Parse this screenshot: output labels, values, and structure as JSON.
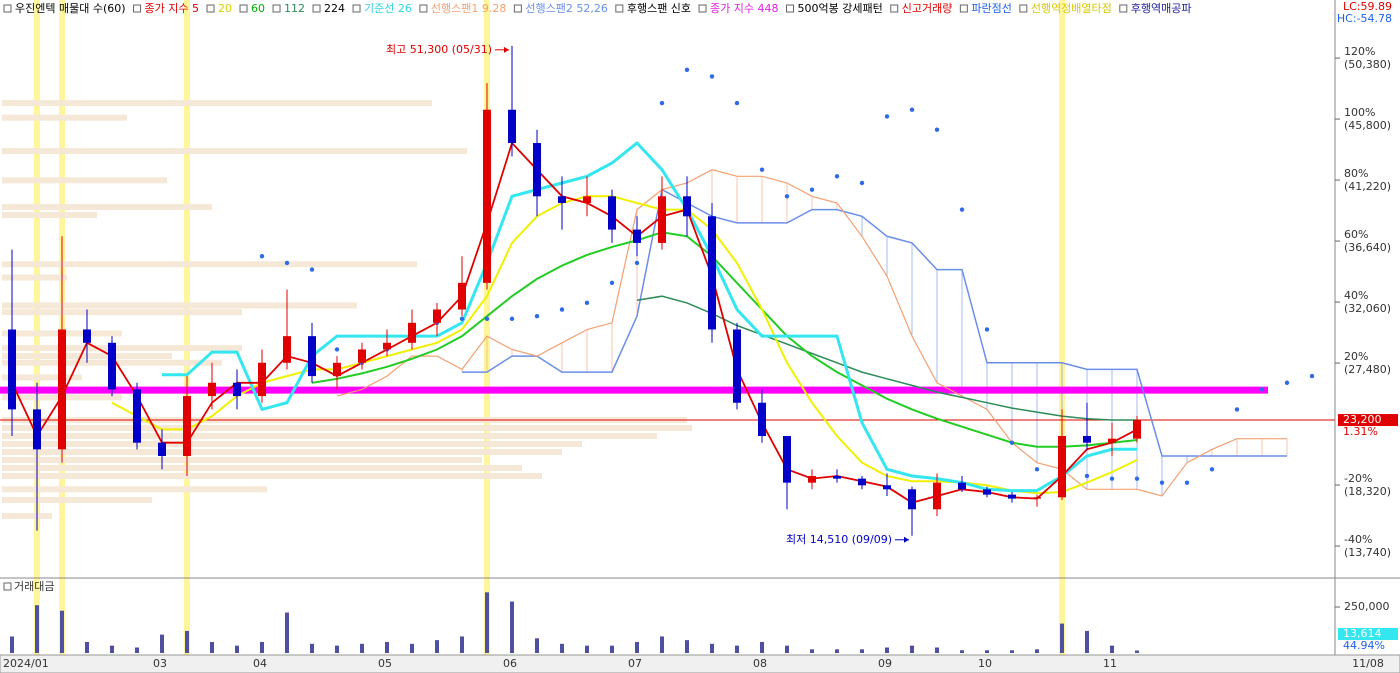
{
  "chart_data": {
    "type": "candlestick",
    "legend": [
      {
        "text": "우진엔텍 매물대 수(60)",
        "color": "#000000"
      },
      {
        "text": "종가 지수 5",
        "color": "#e00000"
      },
      {
        "text": "20",
        "color": "#d8d000"
      },
      {
        "text": "60",
        "color": "#00b000"
      },
      {
        "text": "112",
        "color": "#2e8b57"
      },
      {
        "text": "224",
        "color": "#000000"
      },
      {
        "text": "기준선 26",
        "color": "#33d6e0"
      },
      {
        "text": "선행스팬1 9.28",
        "color": "#f4a070"
      },
      {
        "text": "선행스팬2 52,26",
        "color": "#6a8ee8"
      },
      {
        "text": "후행스팬 신호",
        "color": "#000000"
      },
      {
        "text": "종가 지수 448",
        "color": "#e020e0"
      },
      {
        "text": "500억봉 강세패턴",
        "color": "#000000"
      },
      {
        "text": "신고거래량",
        "color": "#e00000"
      },
      {
        "text": "파란점선",
        "color": "#2060f0"
      },
      {
        "text": "선행역정배열타점",
        "color": "#d8c800"
      },
      {
        "text": "후행역매공파",
        "color": "#2020a0"
      }
    ],
    "categories": [
      "2024/01",
      null,
      null,
      null,
      null,
      null,
      "03",
      null,
      null,
      null,
      "04",
      null,
      null,
      null,
      null,
      "05",
      null,
      null,
      null,
      null,
      "06",
      null,
      null,
      null,
      null,
      "07",
      null,
      null,
      null,
      null,
      "08",
      null,
      null,
      null,
      null,
      "09",
      null,
      null,
      null,
      "10",
      null,
      null,
      null,
      null,
      "11",
      null,
      null,
      null,
      null,
      null,
      null,
      null,
      null
    ],
    "open": [
      30000,
      24000,
      21000,
      30000,
      29000,
      25500,
      21500,
      20500,
      25000,
      26000,
      25000,
      27500,
      29500,
      26500,
      27500,
      28500,
      29000,
      30500,
      31500,
      33500,
      46500,
      44000,
      40000,
      39500,
      40000,
      37500,
      36500,
      40000,
      38500,
      30000,
      24500,
      22000,
      18500,
      19000,
      18800,
      18300,
      18000,
      16500,
      18500,
      18000,
      17600,
      17300,
      17400,
      22000,
      21500,
      21800,
      null,
      null,
      null,
      null,
      null,
      null,
      null
    ],
    "high": [
      36000,
      26000,
      37000,
      31500,
      29500,
      26000,
      22500,
      26500,
      27500,
      27000,
      28500,
      33000,
      30500,
      28000,
      29000,
      30000,
      31500,
      32000,
      35500,
      48500,
      51300,
      45000,
      41500,
      41500,
      40500,
      38500,
      41500,
      41500,
      39500,
      30500,
      25500,
      22000,
      19500,
      19500,
      19000,
      19200,
      18200,
      19200,
      19000,
      18200,
      17800,
      17600,
      24000,
      24500,
      23000,
      23500,
      null,
      null,
      null,
      null,
      null,
      null,
      null
    ],
    "low": [
      22000,
      14900,
      20000,
      27500,
      25000,
      21000,
      19500,
      19000,
      24000,
      24000,
      24500,
      27000,
      26000,
      25500,
      27000,
      28000,
      28500,
      29500,
      31000,
      33000,
      43000,
      38500,
      37500,
      38500,
      36500,
      35500,
      36000,
      37000,
      29000,
      24000,
      21500,
      16500,
      18000,
      18500,
      18000,
      17500,
      14510,
      16000,
      17800,
      17400,
      17000,
      16700,
      17200,
      21000,
      20500,
      21500,
      null,
      null,
      null,
      null,
      null,
      null,
      null
    ],
    "close": [
      24000,
      21000,
      30000,
      29000,
      25500,
      21500,
      20500,
      25000,
      26000,
      25000,
      27500,
      29500,
      26500,
      27500,
      28500,
      29000,
      30500,
      31500,
      33500,
      46500,
      44000,
      40000,
      39500,
      40000,
      37500,
      36500,
      40000,
      38500,
      30000,
      24500,
      22000,
      18500,
      19000,
      18800,
      18300,
      18000,
      16500,
      18500,
      18000,
      17600,
      17300,
      17400,
      22000,
      21500,
      21800,
      23200,
      null,
      null,
      null,
      null,
      null,
      null,
      null
    ],
    "up_color": "#e00000",
    "down_color": "#0000c8",
    "series": [
      {
        "color": "#6a8ee8",
        "width": 1.5,
        "values": [
          null,
          null,
          null,
          null,
          null,
          null,
          null,
          null,
          null,
          null,
          null,
          null,
          null,
          null,
          null,
          null,
          null,
          null,
          26800,
          26800,
          28000,
          28000,
          26800,
          26800,
          26800,
          31000,
          40500,
          39500,
          38500,
          38000,
          38000,
          38000,
          39000,
          39000,
          38500,
          37000,
          36500,
          34500,
          34500,
          27500,
          27500,
          27500,
          27500,
          27000,
          27000,
          27000,
          20500,
          20500,
          20500,
          20500,
          20500,
          20500,
          null
        ]
      },
      {
        "color": "#f4a070",
        "width": 1.2,
        "values": [
          null,
          null,
          null,
          null,
          null,
          null,
          null,
          null,
          null,
          null,
          null,
          null,
          null,
          25000,
          25500,
          26500,
          28000,
          28000,
          27000,
          29500,
          28500,
          28000,
          29000,
          30000,
          30500,
          39000,
          40500,
          41000,
          42000,
          41500,
          41500,
          41000,
          40000,
          39500,
          37000,
          34000,
          29500,
          26000,
          25000,
          24000,
          21500,
          20000,
          19500,
          18000,
          18000,
          18000,
          17500,
          20000,
          21000,
          21800,
          21800,
          21800,
          null
        ]
      },
      {
        "color": "#2e8b57",
        "width": 1.5,
        "values": [
          null,
          null,
          null,
          null,
          null,
          null,
          null,
          null,
          null,
          null,
          null,
          null,
          null,
          null,
          null,
          null,
          null,
          null,
          null,
          null,
          null,
          null,
          null,
          null,
          null,
          32200,
          32500,
          32000,
          31200,
          30300,
          29600,
          28900,
          28200,
          27500,
          26800,
          26300,
          25800,
          25300,
          24900,
          24500,
          24100,
          23800,
          23500,
          23300,
          23200,
          23200,
          null,
          null,
          null,
          null,
          null,
          null,
          null
        ]
      },
      {
        "color": "#22cc22",
        "width": 2,
        "values": [
          null,
          null,
          null,
          null,
          null,
          null,
          null,
          null,
          null,
          null,
          null,
          null,
          26000,
          26300,
          26700,
          27200,
          27800,
          28500,
          29500,
          31000,
          32500,
          33800,
          34800,
          35600,
          36200,
          36700,
          37300,
          37000,
          35500,
          33500,
          31500,
          29500,
          28000,
          26800,
          25800,
          24800,
          24000,
          23300,
          22700,
          22100,
          21500,
          21200,
          21200,
          21300,
          21500,
          21700,
          null,
          null,
          null,
          null,
          null,
          null,
          null
        ]
      },
      {
        "color": "#f0f000",
        "width": 2,
        "values": [
          null,
          null,
          null,
          null,
          24500,
          23500,
          22500,
          22500,
          23500,
          25000,
          26000,
          26500,
          27000,
          27000,
          27500,
          28000,
          28500,
          29000,
          30000,
          32500,
          36500,
          38500,
          39500,
          40000,
          40000,
          39500,
          39000,
          39000,
          37500,
          35000,
          31500,
          27500,
          24500,
          22000,
          20000,
          19000,
          18600,
          18600,
          18500,
          18300,
          17900,
          17700,
          17800,
          18500,
          19300,
          20200,
          null,
          null,
          null,
          null,
          null,
          null,
          null
        ]
      },
      {
        "color": "#33e6f0",
        "width": 3,
        "values": [
          null,
          null,
          null,
          null,
          null,
          null,
          26600,
          26600,
          28300,
          28300,
          24000,
          24500,
          28000,
          29500,
          29500,
          29500,
          29500,
          29500,
          30500,
          35000,
          40000,
          40500,
          41000,
          41500,
          42500,
          44000,
          42000,
          39000,
          35500,
          31500,
          29500,
          29500,
          29500,
          29500,
          23000,
          19500,
          19000,
          18800,
          18500,
          18000,
          17900,
          17900,
          19000,
          20500,
          21000,
          21000,
          null,
          null,
          null,
          null,
          null,
          null,
          null
        ]
      },
      {
        "color": "#e00000",
        "width": 1.8,
        "values": [
          26000,
          22000,
          25000,
          29000,
          28000,
          25000,
          21500,
          21500,
          24500,
          26000,
          26000,
          28000,
          27500,
          26500,
          27500,
          28500,
          29500,
          30500,
          32500,
          38000,
          44000,
          42000,
          40000,
          39500,
          38500,
          37000,
          38500,
          39000,
          34000,
          27000,
          23000,
          19500,
          18800,
          19000,
          18600,
          18200,
          17000,
          17500,
          18000,
          17800,
          17400,
          17300,
          19000,
          21000,
          21500,
          22500,
          null,
          null,
          null,
          null,
          null,
          null,
          null
        ]
      }
    ],
    "dots": {
      "color": "#2e6ae8",
      "values": [
        null,
        null,
        null,
        null,
        null,
        null,
        null,
        null,
        null,
        null,
        35500,
        35000,
        34500,
        28500,
        27500,
        28500,
        30000,
        30500,
        30800,
        30800,
        30800,
        31000,
        31500,
        32000,
        33500,
        35000,
        47000,
        49500,
        49000,
        47000,
        42000,
        40000,
        40500,
        41500,
        41000,
        46000,
        46500,
        45000,
        39000,
        30000,
        21500,
        19500,
        19000,
        19000,
        18800,
        18800,
        18500,
        18500,
        19500,
        24000,
        25500,
        26000,
        26500
      ]
    },
    "highlights": {
      "color": "#fff59a",
      "indices": [
        1,
        2,
        7,
        19,
        42
      ]
    },
    "volume_profile": {
      "color": "#f6e8d6",
      "prices": [
        47000,
        45900,
        43400,
        41200,
        39200,
        38600,
        34900,
        33900,
        31800,
        31300,
        29700,
        28600,
        28000,
        27500,
        26400,
        24900,
        23200,
        22600,
        22000,
        21400,
        20800,
        20200,
        19600,
        19000,
        18000,
        17200,
        16000
      ],
      "values": [
        430,
        125,
        465,
        165,
        210,
        95,
        415,
        65,
        355,
        240,
        120,
        240,
        170,
        220,
        80,
        120,
        685,
        690,
        655,
        580,
        560,
        480,
        520,
        540,
        265,
        150,
        50
      ]
    },
    "magenta_line": {
      "value": 25450,
      "color": "#ff00ff"
    },
    "current_price": {
      "value": 23200,
      "label": "23,200",
      "change": "1.31%",
      "color": "#e00000"
    },
    "annotations": [
      {
        "text": "최고 51,300 (05/31)",
        "index": 20,
        "value": 51300,
        "color": "#e00000"
      },
      {
        "text": "최저 14,510 (09/09)",
        "index": 36,
        "value": 14510,
        "color": "#0000c8"
      }
    ],
    "ylim": [
      11340,
      54740
    ],
    "yticks": [
      {
        "value": 50380,
        "label": "(50,380)",
        "pct": "120%"
      },
      {
        "value": 45800,
        "label": "(45,800)",
        "pct": "100%"
      },
      {
        "value": 41220,
        "label": "(41,220)",
        "pct": "80%"
      },
      {
        "value": 36640,
        "label": "(36,640)",
        "pct": "60%"
      },
      {
        "value": 32060,
        "label": "(32,060)",
        "pct": "40%"
      },
      {
        "value": 27480,
        "label": "(27,480)",
        "pct": "20%"
      },
      {
        "value": 18320,
        "label": "(18,320)",
        "pct": "-20%"
      },
      {
        "value": 13740,
        "label": "(13,740)",
        "pct": "-40%"
      }
    ],
    "indicators": {
      "lc": "LC:59.89",
      "hc": "HC:-54.78"
    },
    "volume": {
      "title": "거래대금",
      "color": "#5050a0",
      "values": [
        90000,
        260000,
        230000,
        60000,
        40000,
        30000,
        100000,
        120000,
        60000,
        40000,
        60000,
        220000,
        50000,
        40000,
        50000,
        60000,
        50000,
        70000,
        90000,
        330000,
        280000,
        80000,
        50000,
        40000,
        40000,
        60000,
        90000,
        70000,
        50000,
        40000,
        60000,
        40000,
        20000,
        20000,
        20000,
        30000,
        40000,
        30000,
        15000,
        15000,
        15000,
        20000,
        160000,
        120000,
        40000,
        13614,
        null,
        null,
        null,
        null,
        null,
        null,
        null
      ],
      "ylim": [
        0,
        397000
      ],
      "yticks": [
        {
          "value": 250000,
          "label": "250,000"
        }
      ],
      "current": {
        "value": 13614,
        "label": "13,614",
        "ratio": "44.94%"
      }
    },
    "date_label": "11/08"
  }
}
